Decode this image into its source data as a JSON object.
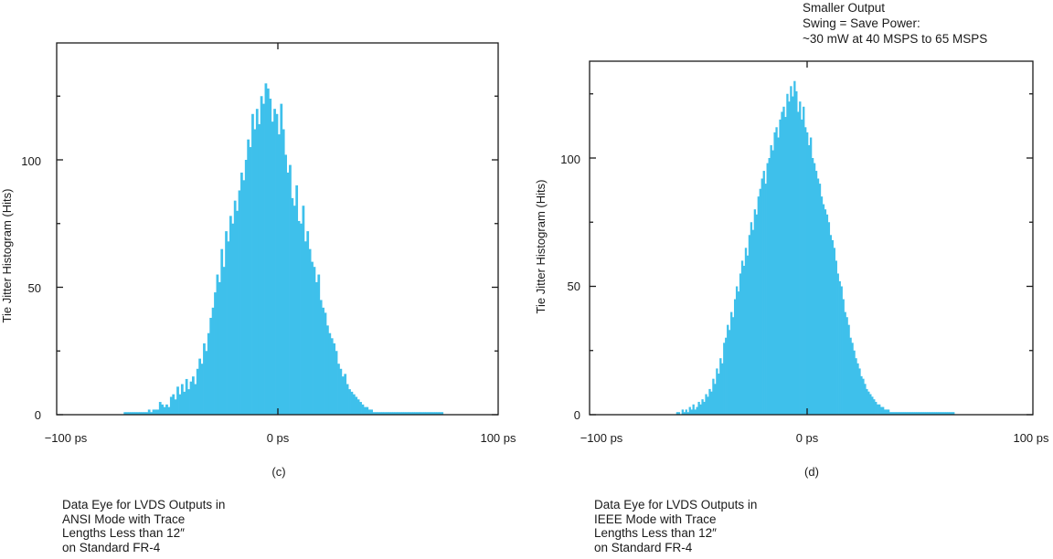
{
  "chart_data": [
    {
      "type": "bar",
      "panel": "(c)",
      "ylabel": "Tie Jitter Histogram (Hits)",
      "xlabel": "",
      "xlim": [
        -100,
        100
      ],
      "ylim": [
        0,
        132
      ],
      "x_ticks": [
        "−100 ps",
        "0 ps",
        "100 ps"
      ],
      "y_ticks": [
        0,
        50,
        100
      ],
      "bin_width_ps": 1,
      "x_start_ps": -70,
      "values": [
        1,
        1,
        1,
        1,
        1,
        1,
        1,
        1,
        1,
        1,
        1,
        2,
        1,
        2,
        2,
        2,
        5,
        4,
        3,
        4,
        3,
        7,
        8,
        6,
        11,
        8,
        12,
        9,
        14,
        10,
        13,
        15,
        12,
        18,
        22,
        20,
        28,
        25,
        32,
        38,
        42,
        48,
        55,
        52,
        65,
        58,
        72,
        68,
        78,
        75,
        84,
        80,
        88,
        95,
        92,
        100,
        108,
        105,
        118,
        112,
        120,
        114,
        125,
        122,
        130,
        128,
        124,
        115,
        120,
        118,
        110,
        122,
        112,
        102,
        95,
        98,
        85,
        82,
        90,
        76,
        75,
        82,
        68,
        72,
        65,
        60,
        58,
        52,
        55,
        45,
        42,
        40,
        35,
        32,
        30,
        28,
        25,
        20,
        18,
        15,
        16,
        12,
        10,
        9,
        8,
        7,
        6,
        5,
        4,
        3,
        3,
        2,
        2,
        1,
        1,
        1,
        1,
        1,
        1,
        1,
        1,
        1,
        1,
        1,
        1,
        1,
        1,
        1,
        1,
        1,
        1,
        1,
        1,
        1,
        1,
        1,
        1,
        1,
        1,
        1,
        1,
        1,
        1,
        1,
        1
      ]
    },
    {
      "type": "bar",
      "panel": "(d)",
      "ylabel": "Tie Jitter Histogram (Hits)",
      "xlabel": "",
      "xlim": [
        -100,
        100
      ],
      "ylim": [
        0,
        132
      ],
      "x_ticks": [
        "−100 ps",
        "0 ps",
        "100 ps"
      ],
      "y_ticks": [
        0,
        50,
        100
      ],
      "bin_width_ps": 0.8,
      "x_start_ps": -58,
      "values": [
        1,
        1,
        0,
        2,
        1,
        2,
        1,
        3,
        2,
        4,
        2,
        3,
        5,
        4,
        6,
        5,
        8,
        7,
        10,
        9,
        14,
        12,
        18,
        16,
        22,
        20,
        28,
        30,
        35,
        33,
        40,
        38,
        45,
        50,
        48,
        55,
        60,
        58,
        65,
        62,
        70,
        75,
        72,
        80,
        78,
        85,
        88,
        92,
        95,
        90,
        98,
        100,
        105,
        103,
        110,
        112,
        108,
        115,
        118,
        120,
        116,
        125,
        122,
        128,
        124,
        130,
        126,
        118,
        122,
        115,
        120,
        112,
        110,
        105,
        108,
        100,
        98,
        95,
        92,
        90,
        85,
        82,
        80,
        78,
        75,
        70,
        68,
        65,
        60,
        55,
        52,
        50,
        45,
        40,
        38,
        35,
        30,
        28,
        25,
        22,
        20,
        18,
        15,
        14,
        12,
        10,
        9,
        8,
        7,
        6,
        5,
        4,
        4,
        3,
        3,
        2,
        2,
        2,
        1,
        1,
        1,
        1,
        1,
        1,
        1,
        1,
        1,
        1,
        1,
        1,
        1,
        1,
        1,
        1,
        1,
        1,
        1,
        1,
        1,
        1,
        1,
        1,
        1,
        1,
        1,
        1,
        1,
        1,
        1,
        1,
        1,
        1,
        1,
        1
      ]
    }
  ],
  "captions": {
    "c": [
      "Data Eye for LVDS Outputs in",
      "ANSI Mode with Trace",
      "Lengths Less than 12″",
      "on Standard FR-4"
    ],
    "d": [
      "Data Eye for LVDS Outputs in",
      "IEEE Mode with Trace",
      "Lengths Less than 12″",
      "on Standard FR-4"
    ]
  },
  "annotation": [
    "Smaller Output",
    "Swing = Save Power:",
    "~30 mW at 40 MSPS to 65 MSPS"
  ],
  "colors": {
    "bars": "#3ec0eb",
    "frame": "#1a1a1a"
  }
}
